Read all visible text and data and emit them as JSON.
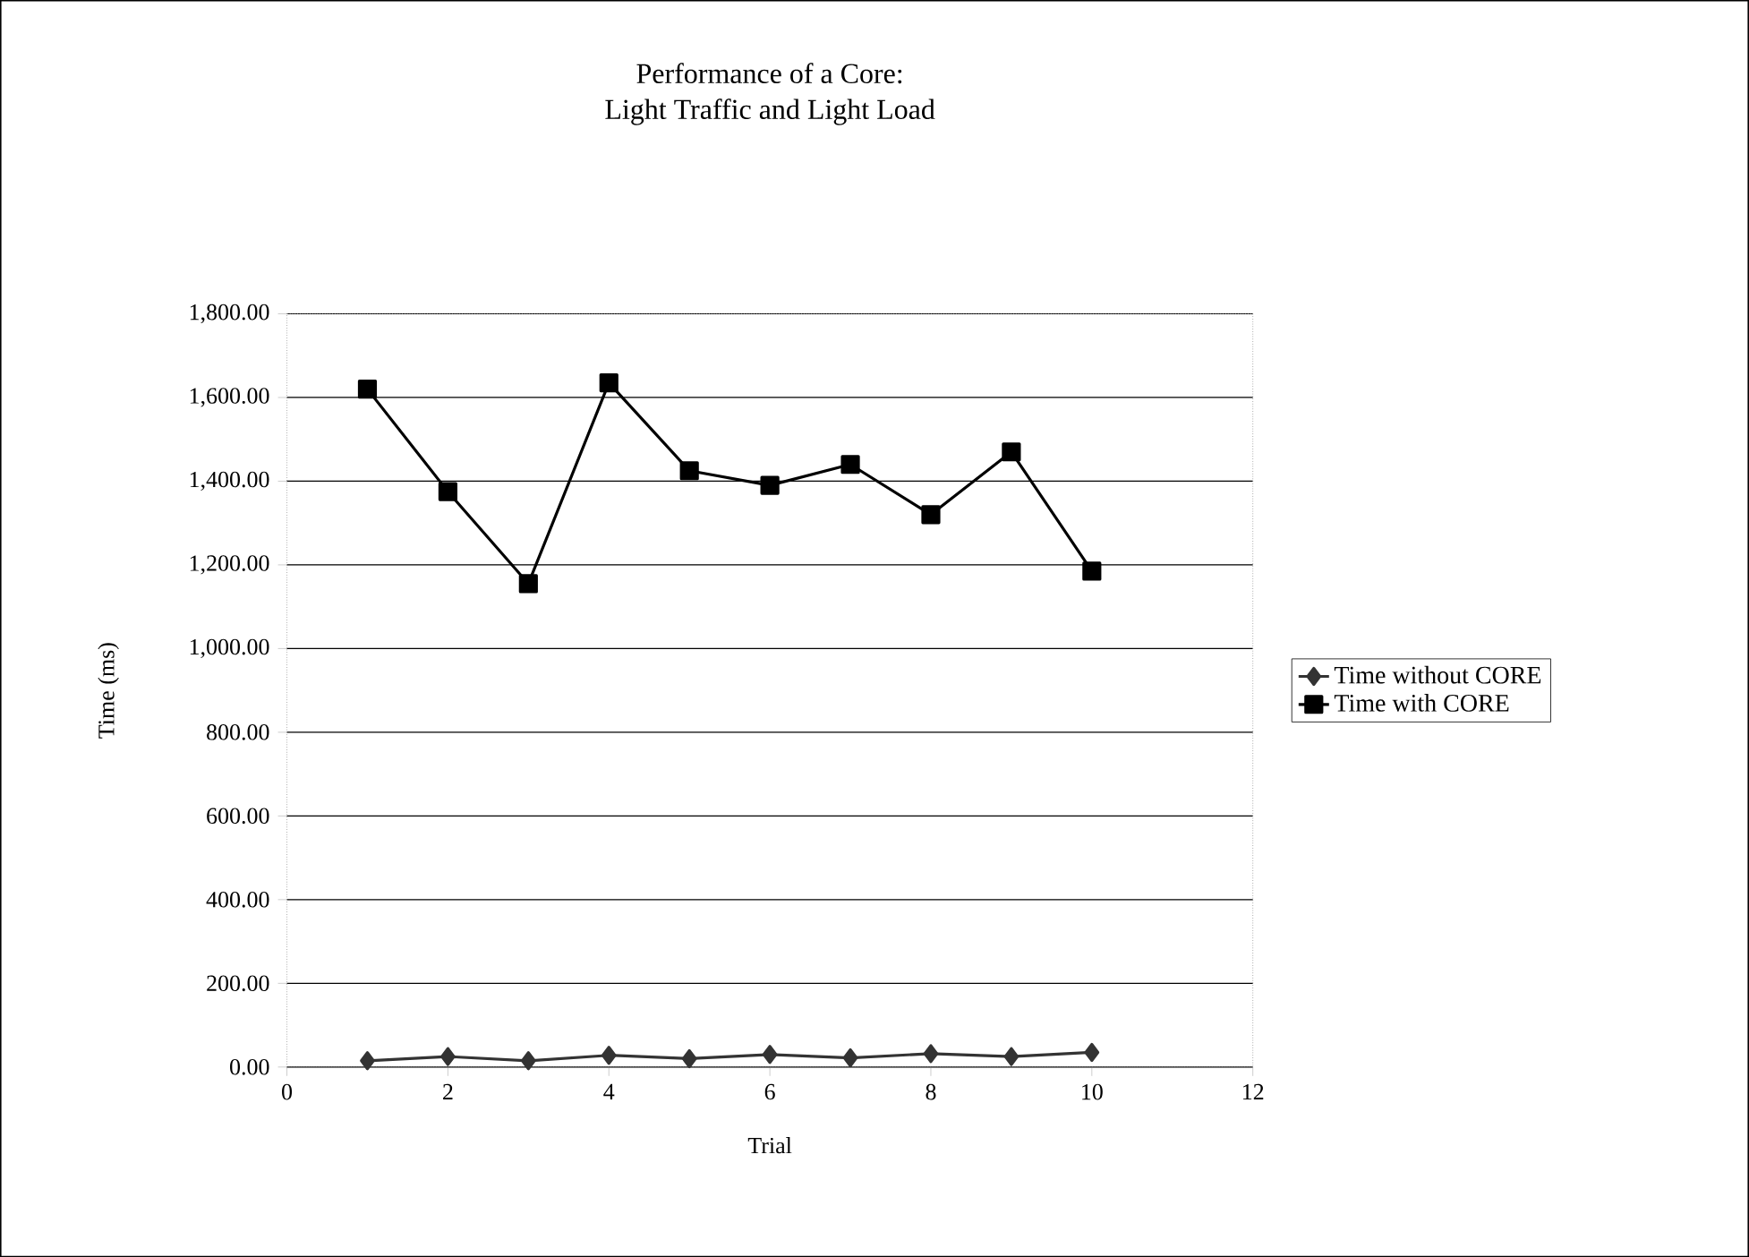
{
  "chart_data": {
    "type": "line",
    "title": "Performance of a Core:\nLight Traffic and Light Load",
    "xlabel": "Trial",
    "ylabel": "Time (ms)",
    "x": [
      1,
      2,
      3,
      4,
      5,
      6,
      7,
      8,
      9,
      10
    ],
    "series": [
      {
        "name": "Time without CORE",
        "color": "#333333",
        "marker": "diamond",
        "values": [
          15,
          25,
          15,
          28,
          20,
          30,
          22,
          32,
          25,
          35
        ]
      },
      {
        "name": "Time with CORE",
        "color": "#000000",
        "marker": "square",
        "values": [
          1620,
          1375,
          1155,
          1635,
          1425,
          1390,
          1440,
          1320,
          1470,
          1185
        ]
      }
    ],
    "xlim": [
      0,
      12
    ],
    "xticks": [
      0,
      2,
      4,
      6,
      8,
      10,
      12
    ],
    "ylim": [
      0,
      1800
    ],
    "yticks": [
      {
        "value": 0,
        "label": "0.00"
      },
      {
        "value": 200,
        "label": "200.00"
      },
      {
        "value": 400,
        "label": "400.00"
      },
      {
        "value": 600,
        "label": "600.00"
      },
      {
        "value": 800,
        "label": "800.00"
      },
      {
        "value": 1000,
        "label": "1,000.00"
      },
      {
        "value": 1200,
        "label": "1,200.00"
      },
      {
        "value": 1400,
        "label": "1,400.00"
      },
      {
        "value": 1600,
        "label": "1,600.00"
      },
      {
        "value": 1800,
        "label": "1,800.00"
      }
    ],
    "grid": "y",
    "legend": "right",
    "line_style": "solid"
  }
}
